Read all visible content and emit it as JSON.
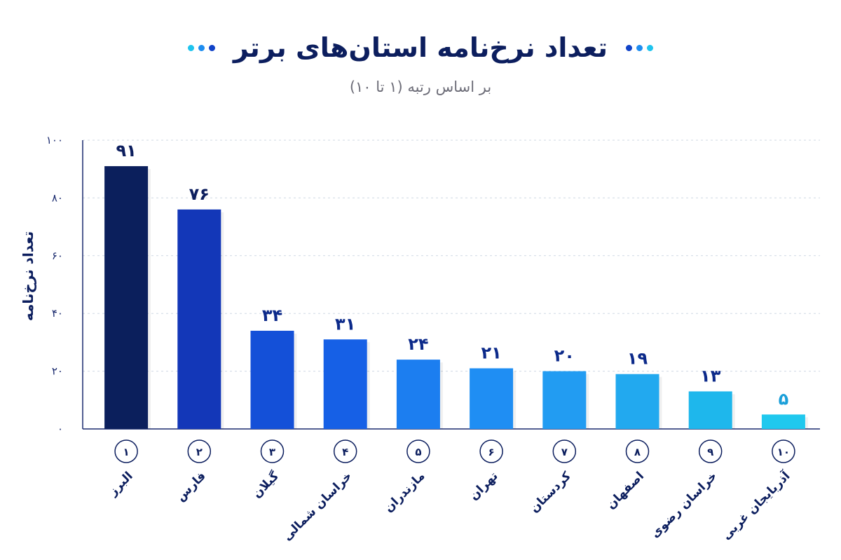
{
  "chart_data": {
    "type": "bar",
    "title": "تعداد نرخ‌نامه استان‌های برتر",
    "subtitle": "بر اساس رتبه (۱ تا ۱۰)",
    "ylabel": "تعداد نرخ‌نامه",
    "xlabel": "",
    "ylim": [
      0,
      100
    ],
    "yticks": [
      0,
      20,
      40,
      60,
      80,
      100
    ],
    "ytick_labels": [
      "۰",
      "۲۰",
      "۴۰",
      "۶۰",
      "۸۰",
      "۱۰۰"
    ],
    "grid": true,
    "ranks": [
      "۱",
      "۲",
      "۳",
      "۴",
      "۵",
      "۶",
      "۷",
      "۸",
      "۹",
      "۱۰"
    ],
    "categories": [
      "البرز",
      "فارس",
      "گیلان",
      "خراسان شمالی",
      "مازندران",
      "تهران",
      "کردستان",
      "اصفهان",
      "خراسان رضوی",
      "آذربایجان غربی"
    ],
    "values": [
      91,
      76,
      34,
      31,
      24,
      21,
      20,
      19,
      13,
      5
    ],
    "value_labels": [
      "۹۱",
      "۷۶",
      "۳۴",
      "۳۱",
      "۲۴",
      "۲۱",
      "۲۰",
      "۱۹",
      "۱۳",
      "۵"
    ],
    "bar_colors": [
      "#0b1f5c",
      "#1337b8",
      "#1450d8",
      "#1660e6",
      "#1c7ef0",
      "#1f8ef3",
      "#229cf2",
      "#22a9ef",
      "#1eb7ec",
      "#20c8ee"
    ]
  },
  "decor": {
    "dots_left": [
      "#1fc4ee",
      "#1e8df0",
      "#1143c8"
    ],
    "dots_right": [
      "#1143c8",
      "#1e8df0",
      "#1fc4ee"
    ],
    "title_color": "#0c1e5e",
    "grid_color": "#cfd8e3",
    "axis_color": "#1a2a6e"
  }
}
